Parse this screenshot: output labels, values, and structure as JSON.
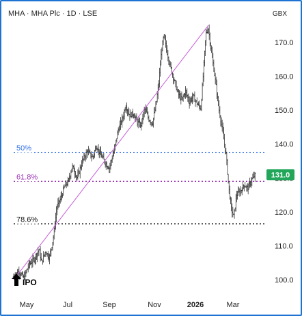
{
  "header": {
    "symbol": "MHA · MHA Plc · 1D · LSE",
    "currency": "GBX"
  },
  "chart_data": {
    "type": "ohlc",
    "title": "MHA · MHA Plc · 1D · LSE",
    "ylabel": "GBX",
    "ylim": [
      95,
      176
    ],
    "y_ticks": [
      100,
      110,
      120,
      130,
      140,
      150,
      160,
      170
    ],
    "y_tick_labels": [
      "100.0",
      "110.0",
      "120.0",
      "130.0",
      "140.0",
      "150.0",
      "160.0",
      "170.0"
    ],
    "x_ticks": [
      "May",
      "Jul",
      "Sep",
      "Nov",
      "2026",
      "Mar"
    ],
    "bold_x_tick": "2026",
    "last_price": 131.0,
    "last_price_label": "131.0",
    "price_path": [
      [
        0,
        101.0
      ],
      [
        4,
        102.5
      ],
      [
        8,
        100.5
      ],
      [
        12,
        104.5
      ],
      [
        16,
        106.0
      ],
      [
        20,
        109.0
      ],
      [
        22,
        105.0
      ],
      [
        25,
        108.5
      ],
      [
        28,
        106.5
      ],
      [
        31,
        112.0
      ],
      [
        34,
        121.5
      ],
      [
        37,
        124.0
      ],
      [
        40,
        127.5
      ],
      [
        43,
        129.0
      ],
      [
        46,
        133.5
      ],
      [
        50,
        130.0
      ],
      [
        54,
        135.0
      ],
      [
        58,
        138.0
      ],
      [
        62,
        136.0
      ],
      [
        65,
        139.5
      ],
      [
        68,
        137.0
      ],
      [
        72,
        134.5
      ],
      [
        75,
        133.0
      ],
      [
        79,
        138.0
      ],
      [
        82,
        144.0
      ],
      [
        86,
        148.0
      ],
      [
        88,
        151.5
      ],
      [
        91,
        148.5
      ],
      [
        94,
        149.0
      ],
      [
        97,
        146.5
      ],
      [
        100,
        145.5
      ],
      [
        103,
        150.5
      ],
      [
        106,
        147.5
      ],
      [
        109,
        146.0
      ],
      [
        112,
        152.0
      ],
      [
        114,
        158.0
      ],
      [
        116,
        167.0
      ],
      [
        118,
        172.0
      ],
      [
        120,
        168.0
      ],
      [
        123,
        163.0
      ],
      [
        126,
        159.0
      ],
      [
        129,
        155.0
      ],
      [
        132,
        153.0
      ],
      [
        135,
        155.5
      ],
      [
        138,
        152.5
      ],
      [
        141,
        154.0
      ],
      [
        144,
        152.0
      ],
      [
        147,
        150.5
      ],
      [
        149,
        161.0
      ],
      [
        151,
        172.5
      ],
      [
        153,
        174.0
      ],
      [
        155,
        168.0
      ],
      [
        158,
        160.0
      ],
      [
        161,
        151.0
      ],
      [
        164,
        144.0
      ],
      [
        167,
        136.5
      ],
      [
        169,
        127.0
      ],
      [
        171,
        121.0
      ],
      [
        173,
        118.5
      ],
      [
        175,
        125.0
      ],
      [
        178,
        126.0
      ],
      [
        181,
        128.0
      ],
      [
        184,
        127.0
      ],
      [
        187,
        129.5
      ],
      [
        190,
        131.0
      ]
    ],
    "trend_line": {
      "from": {
        "x": 0,
        "y": 100.0
      },
      "to": {
        "x": 153,
        "y": 175.0
      }
    },
    "fib_levels": [
      {
        "label": "50%",
        "value": 137.5,
        "color": "#2f6fe8"
      },
      {
        "label": "61.8%",
        "value": 129.0,
        "color": "#9a2fb5"
      },
      {
        "label": "78.6%",
        "value": 116.5,
        "color": "#111111"
      }
    ],
    "annotation": {
      "label": "IPO",
      "x": 0
    },
    "colors": {
      "bars": "#333333",
      "trend_line": "#c65bd8",
      "last_price_badge": "#22a65a",
      "frame": "#1e73d2"
    },
    "grid": false
  }
}
